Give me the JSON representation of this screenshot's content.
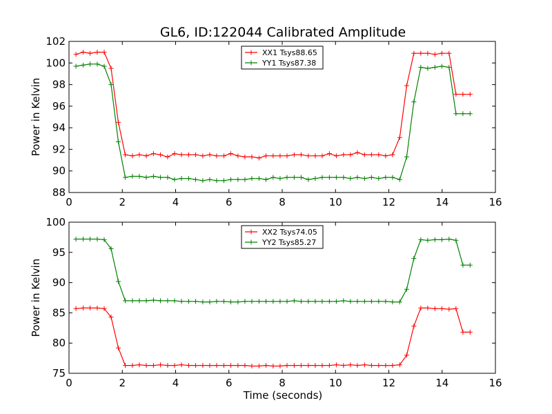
{
  "figure": {
    "title": "GL6, ID:122044 Calibrated Amplitude",
    "xlabel": "Time (seconds)"
  },
  "chart_data": [
    {
      "type": "line",
      "title": "GL6, ID:122044 Calibrated Amplitude",
      "xlabel": "",
      "ylabel": "Power in Kelvin",
      "xlim": [
        0,
        16
      ],
      "ylim": [
        88,
        102
      ],
      "xticks": [
        0,
        2,
        4,
        6,
        8,
        10,
        12,
        14,
        16
      ],
      "yticks": [
        88,
        90,
        92,
        94,
        96,
        98,
        100,
        102
      ],
      "grid": false,
      "legend": "top-center",
      "x": [
        0.26,
        0.53,
        0.79,
        1.06,
        1.32,
        1.58,
        1.85,
        2.11,
        2.38,
        2.64,
        2.9,
        3.17,
        3.43,
        3.7,
        3.96,
        4.22,
        4.49,
        4.75,
        5.02,
        5.28,
        5.54,
        5.81,
        6.07,
        6.34,
        6.6,
        6.86,
        7.13,
        7.39,
        7.66,
        7.92,
        8.18,
        8.45,
        8.71,
        8.98,
        9.24,
        9.5,
        9.77,
        10.03,
        10.3,
        10.56,
        10.82,
        11.09,
        11.35,
        11.62,
        11.88,
        12.14,
        12.41,
        12.67,
        12.94,
        13.2,
        13.46,
        13.73,
        13.99,
        14.26,
        14.52,
        14.78,
        15.05
      ],
      "series": [
        {
          "name": "XX1 Tsys88.65",
          "color": "#ff0000",
          "values": [
            100.8,
            101.0,
            100.9,
            101.0,
            101.0,
            99.5,
            94.5,
            91.5,
            91.4,
            91.5,
            91.4,
            91.6,
            91.5,
            91.3,
            91.6,
            91.5,
            91.5,
            91.5,
            91.4,
            91.5,
            91.4,
            91.4,
            91.6,
            91.4,
            91.3,
            91.3,
            91.2,
            91.4,
            91.4,
            91.4,
            91.4,
            91.5,
            91.5,
            91.4,
            91.4,
            91.4,
            91.6,
            91.4,
            91.5,
            91.5,
            91.7,
            91.5,
            91.5,
            91.5,
            91.4,
            91.5,
            93.1,
            97.9,
            100.9,
            100.9,
            100.9,
            100.8,
            100.9,
            100.9,
            97.1,
            97.1,
            97.1
          ]
        },
        {
          "name": "YY1 Tsys87.38",
          "color": "#008000",
          "values": [
            99.7,
            99.8,
            99.9,
            99.9,
            99.7,
            98.0,
            92.7,
            89.4,
            89.5,
            89.5,
            89.4,
            89.5,
            89.4,
            89.4,
            89.2,
            89.3,
            89.3,
            89.2,
            89.1,
            89.2,
            89.1,
            89.1,
            89.2,
            89.2,
            89.2,
            89.3,
            89.3,
            89.2,
            89.4,
            89.3,
            89.4,
            89.4,
            89.4,
            89.2,
            89.3,
            89.4,
            89.4,
            89.4,
            89.4,
            89.3,
            89.4,
            89.3,
            89.4,
            89.3,
            89.4,
            89.4,
            89.2,
            91.3,
            96.4,
            99.6,
            99.5,
            99.6,
            99.7,
            99.6,
            95.3,
            95.3,
            95.3
          ]
        }
      ]
    },
    {
      "type": "line",
      "title": "",
      "xlabel": "Time (seconds)",
      "ylabel": "Power in Kelvin",
      "xlim": [
        0,
        16
      ],
      "ylim": [
        75,
        100
      ],
      "xticks": [
        0,
        2,
        4,
        6,
        8,
        10,
        12,
        14,
        16
      ],
      "yticks": [
        75,
        80,
        85,
        90,
        95,
        100
      ],
      "grid": false,
      "legend": "top-center",
      "x": [
        0.26,
        0.53,
        0.79,
        1.06,
        1.32,
        1.58,
        1.85,
        2.11,
        2.38,
        2.64,
        2.9,
        3.17,
        3.43,
        3.7,
        3.96,
        4.22,
        4.49,
        4.75,
        5.02,
        5.28,
        5.54,
        5.81,
        6.07,
        6.34,
        6.6,
        6.86,
        7.13,
        7.39,
        7.66,
        7.92,
        8.18,
        8.45,
        8.71,
        8.98,
        9.24,
        9.5,
        9.77,
        10.03,
        10.3,
        10.56,
        10.82,
        11.09,
        11.35,
        11.62,
        11.88,
        12.14,
        12.41,
        12.67,
        12.94,
        13.2,
        13.46,
        13.73,
        13.99,
        14.26,
        14.52,
        14.78,
        15.05
      ],
      "series": [
        {
          "name": "XX2 Tsys74.05",
          "color": "#ff0000",
          "values": [
            85.7,
            85.8,
            85.8,
            85.8,
            85.7,
            84.3,
            79.2,
            76.3,
            76.3,
            76.4,
            76.3,
            76.3,
            76.4,
            76.3,
            76.3,
            76.4,
            76.3,
            76.3,
            76.3,
            76.3,
            76.3,
            76.3,
            76.3,
            76.3,
            76.3,
            76.2,
            76.2,
            76.3,
            76.2,
            76.2,
            76.3,
            76.3,
            76.3,
            76.3,
            76.3,
            76.3,
            76.3,
            76.4,
            76.3,
            76.4,
            76.3,
            76.4,
            76.3,
            76.3,
            76.3,
            76.3,
            76.4,
            78.0,
            82.8,
            85.8,
            85.8,
            85.7,
            85.7,
            85.6,
            85.7,
            81.8,
            81.8
          ]
        },
        {
          "name": "YY2 Tsys85.27",
          "color": "#008000",
          "values": [
            97.2,
            97.2,
            97.2,
            97.2,
            97.1,
            95.6,
            90.2,
            87.0,
            87.0,
            87.0,
            87.0,
            87.1,
            87.0,
            87.0,
            87.0,
            86.9,
            86.9,
            86.9,
            86.8,
            86.8,
            86.9,
            86.9,
            86.8,
            86.8,
            86.9,
            86.9,
            86.9,
            86.9,
            86.9,
            86.9,
            86.9,
            87.0,
            86.9,
            86.9,
            86.9,
            86.9,
            86.9,
            86.9,
            87.0,
            86.9,
            86.9,
            86.9,
            86.9,
            86.9,
            86.9,
            86.8,
            86.8,
            88.9,
            94.0,
            97.1,
            97.0,
            97.1,
            97.1,
            97.2,
            97.0,
            92.9,
            92.9
          ]
        }
      ]
    }
  ]
}
